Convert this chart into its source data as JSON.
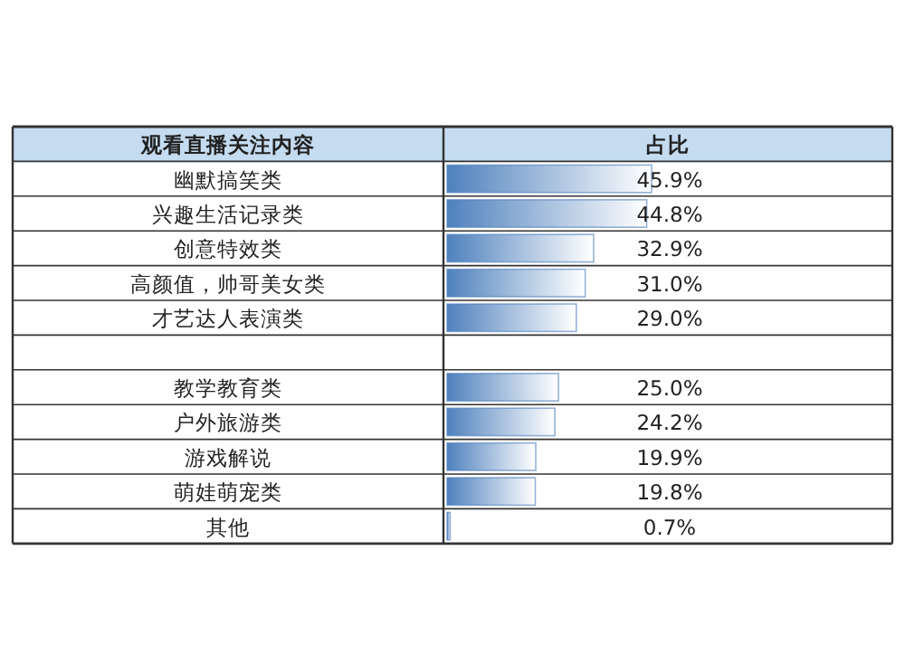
{
  "chart_data": {
    "type": "bar",
    "orientation": "horizontal",
    "ylabel": "观看直播关注内容",
    "xlabel": "占比",
    "categories": [
      "幽默搞笑类",
      "兴趣生活记录类",
      "创意特效类",
      "高颜值，帅哥美女类",
      "才艺达人表演类",
      null,
      "教学教育类",
      "户外旅游类",
      "游戏解说",
      "萌娃萌宠类",
      "其他"
    ],
    "values": [
      45.9,
      44.8,
      32.9,
      31.0,
      29.0,
      null,
      25.0,
      24.2,
      19.9,
      19.8,
      0.7
    ],
    "value_labels": [
      "45.9%",
      "44.8%",
      "32.9%",
      "31.0%",
      "29.0%",
      null,
      "25.0%",
      "24.2%",
      "19.9%",
      "19.8%",
      "0.7%"
    ],
    "color": "#4f81bd"
  }
}
